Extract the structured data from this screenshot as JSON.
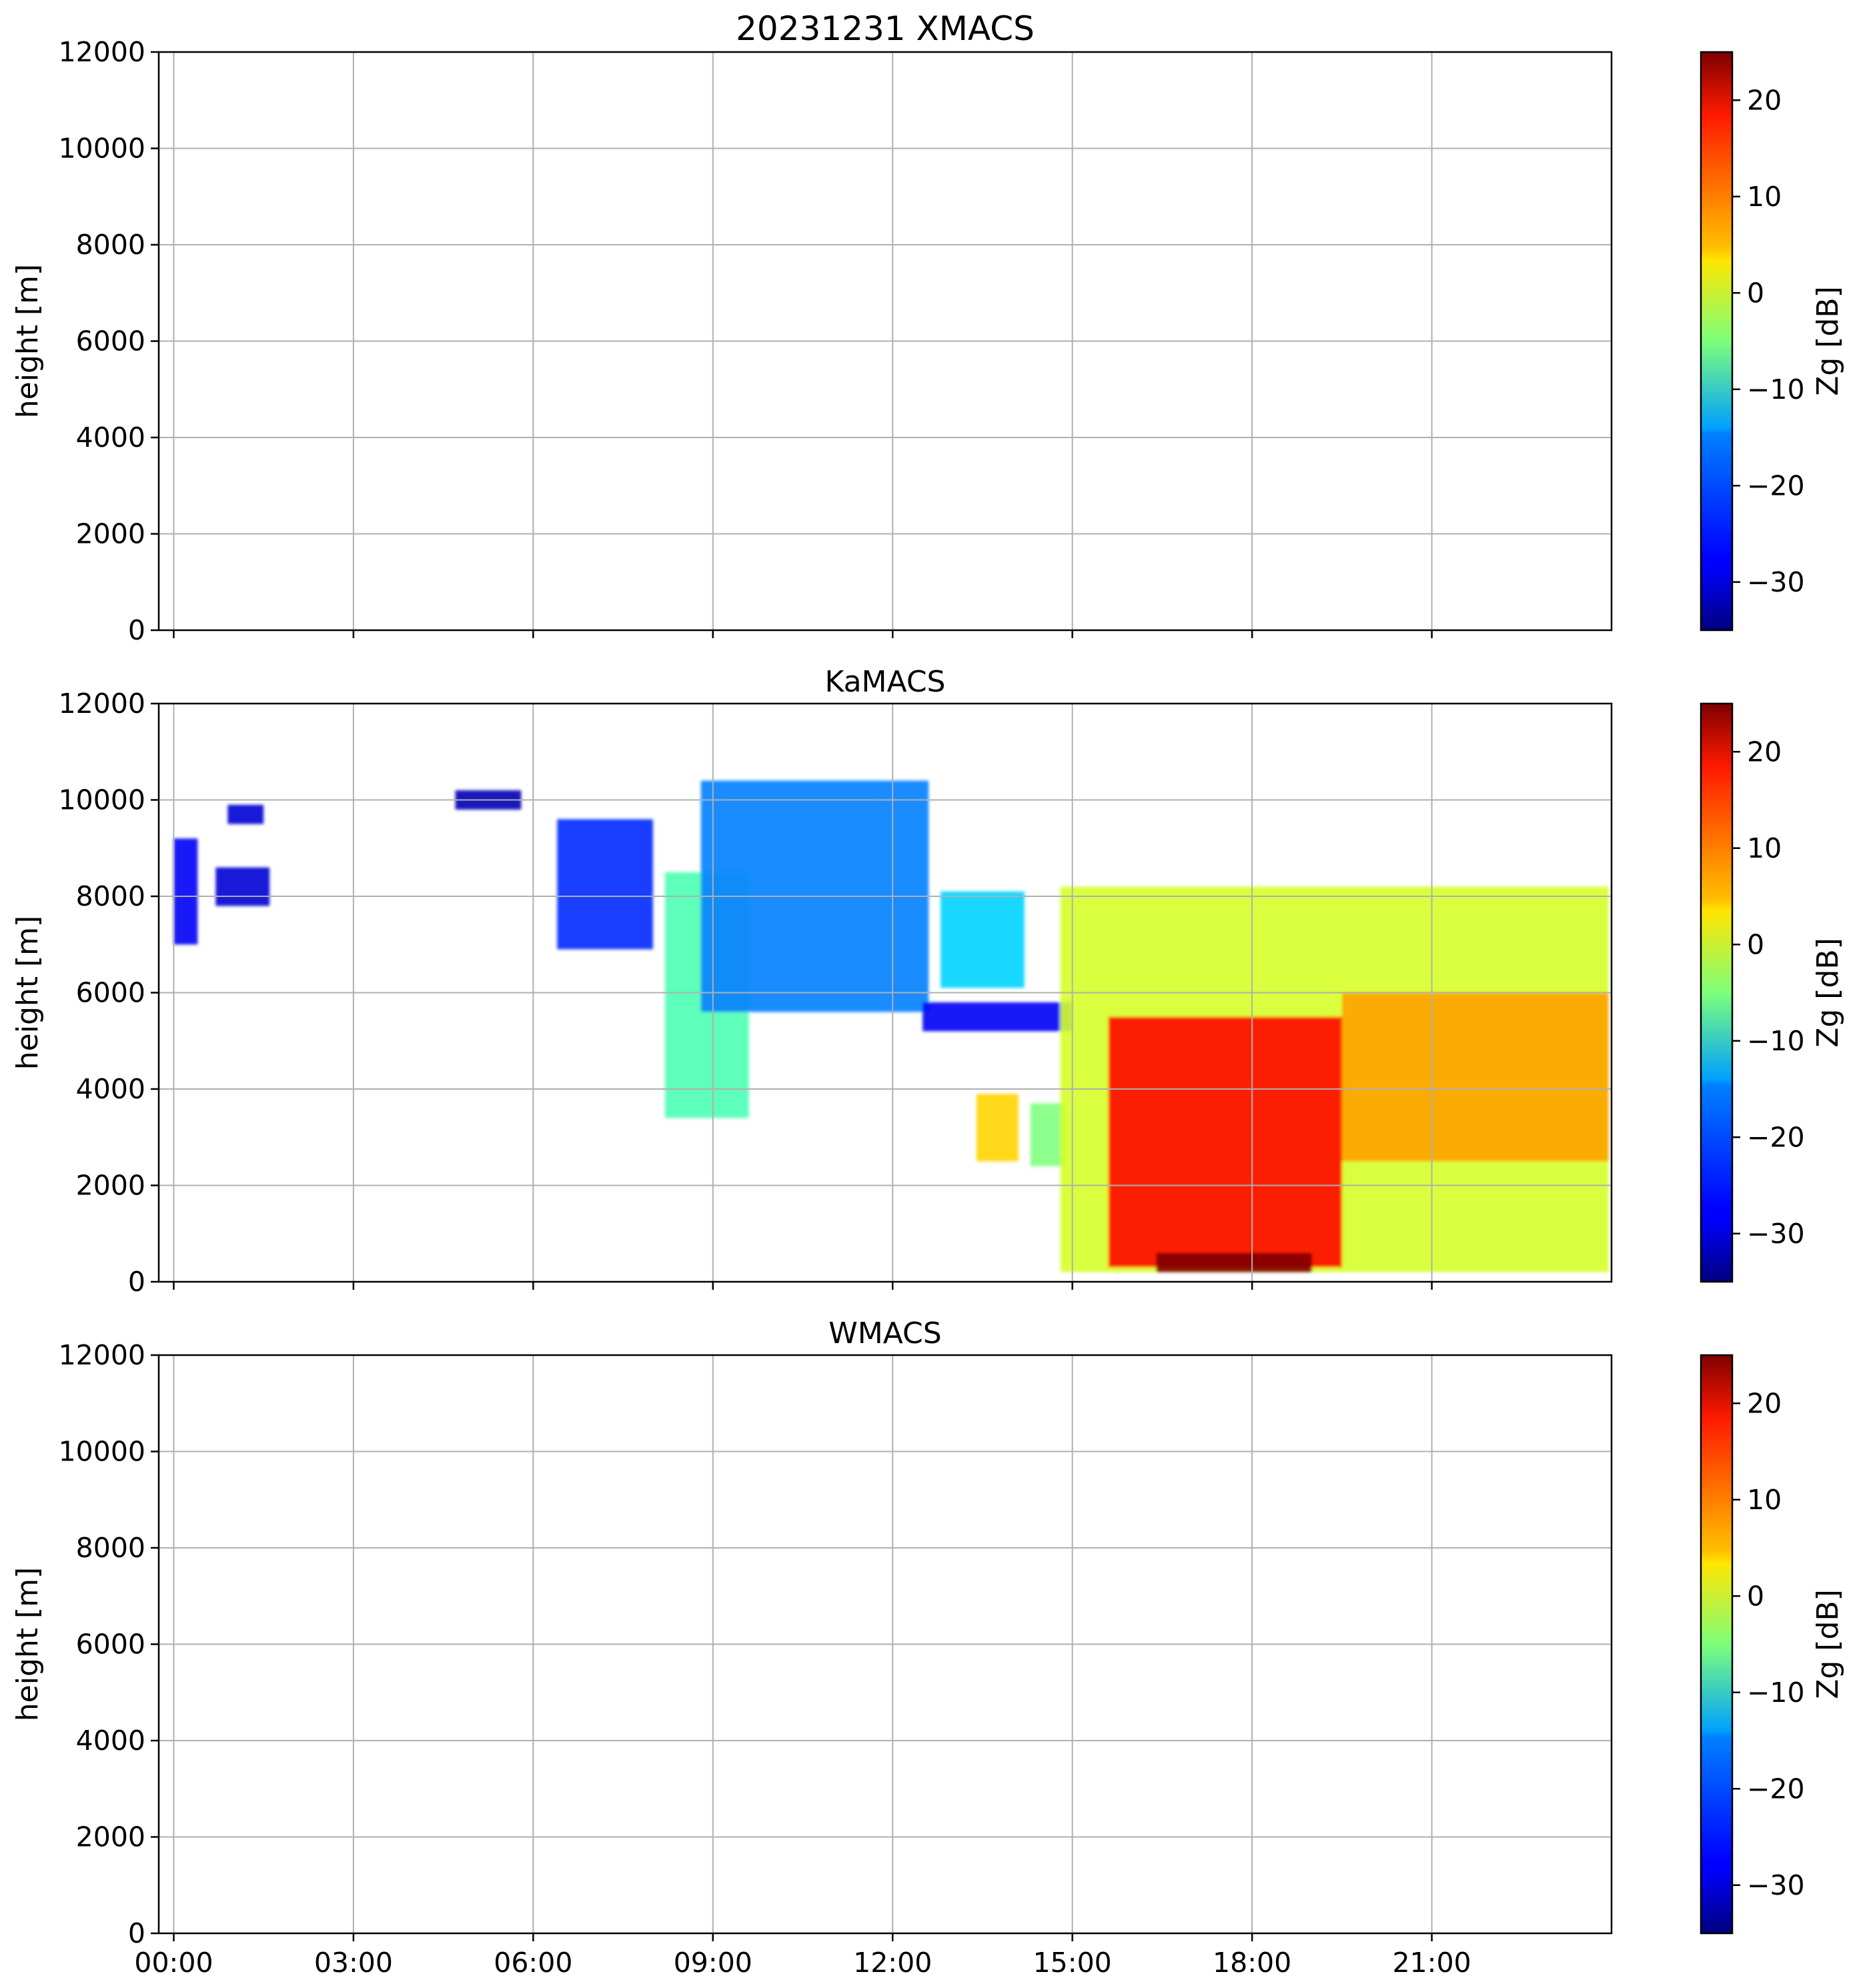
{
  "chart_data": [
    {
      "type": "heatmap",
      "title": "20231231 XMACS",
      "xlabel": "",
      "ylabel": "height [m]",
      "ylim": [
        0,
        12000
      ],
      "yticks": [
        "0",
        "2000",
        "4000",
        "6000",
        "8000",
        "10000",
        "12000"
      ],
      "xlim_hours": [
        -0.25,
        24
      ],
      "xticks": [],
      "grid": true,
      "data_present": false,
      "colorbar": {
        "label": "Zg [dB]",
        "range": [
          -35,
          25
        ],
        "colormap": "jet",
        "ticks": [
          "−30",
          "−20",
          "−10",
          "0",
          "10",
          "20"
        ]
      }
    },
    {
      "type": "heatmap",
      "title": "KaMACS",
      "xlabel": "",
      "ylabel": "height [m]",
      "ylim": [
        0,
        12000
      ],
      "yticks": [
        "0",
        "2000",
        "4000",
        "6000",
        "8000",
        "10000",
        "12000"
      ],
      "xlim_hours": [
        -0.25,
        24
      ],
      "xticks": [],
      "grid": true,
      "data_present": true,
      "colorbar": {
        "label": "Zg [dB]",
        "range": [
          -35,
          25
        ],
        "colormap": "jet",
        "ticks": [
          "−30",
          "−20",
          "−10",
          "0",
          "10",
          "20"
        ]
      },
      "cloud_regions": [
        {
          "t_start": 0.0,
          "t_end": 0.4,
          "h_low": 7000,
          "h_high": 9200,
          "zg_dB": -28
        },
        {
          "t_start": 0.7,
          "t_end": 1.6,
          "h_low": 7800,
          "h_high": 8600,
          "zg_dB": -30
        },
        {
          "t_start": 0.9,
          "t_end": 1.5,
          "h_low": 9500,
          "h_high": 9900,
          "zg_dB": -30
        },
        {
          "t_start": 4.7,
          "t_end": 5.8,
          "h_low": 9800,
          "h_high": 10200,
          "zg_dB": -32
        },
        {
          "t_start": 6.4,
          "t_end": 8.0,
          "h_low": 6900,
          "h_high": 9600,
          "zg_dB": -25
        },
        {
          "t_start": 8.2,
          "t_end": 9.6,
          "h_low": 3400,
          "h_high": 8500,
          "zg_dB": -8
        },
        {
          "t_start": 8.8,
          "t_end": 12.6,
          "h_low": 5600,
          "h_high": 10400,
          "zg_dB": -20
        },
        {
          "t_start": 12.8,
          "t_end": 14.2,
          "h_low": 6100,
          "h_high": 8100,
          "zg_dB": -15
        },
        {
          "t_start": 12.5,
          "t_end": 15.0,
          "h_low": 5200,
          "h_high": 5800,
          "zg_dB": -28
        },
        {
          "t_start": 13.4,
          "t_end": 14.1,
          "h_low": 2500,
          "h_high": 3900,
          "zg_dB": 5
        },
        {
          "t_start": 14.3,
          "t_end": 14.9,
          "h_low": 2400,
          "h_high": 3700,
          "zg_dB": -5
        },
        {
          "t_start": 14.8,
          "t_end": 23.95,
          "h_low": 200,
          "h_high": 8200,
          "zg_dB": 0
        },
        {
          "t_start": 15.6,
          "t_end": 19.5,
          "h_low": 300,
          "h_high": 5500,
          "zg_dB": 17
        },
        {
          "t_start": 16.4,
          "t_end": 19.0,
          "h_low": 200,
          "h_high": 600,
          "zg_dB": 25
        },
        {
          "t_start": 19.5,
          "t_end": 23.95,
          "h_low": 2500,
          "h_high": 6000,
          "zg_dB": 8
        }
      ]
    },
    {
      "type": "heatmap",
      "title": "WMACS",
      "xlabel": "",
      "ylabel": "height [m]",
      "ylim": [
        0,
        12000
      ],
      "yticks": [
        "0",
        "2000",
        "4000",
        "6000",
        "8000",
        "10000",
        "12000"
      ],
      "xlim_hours": [
        -0.25,
        24
      ],
      "xticks": [
        "00:00",
        "03:00",
        "06:00",
        "09:00",
        "12:00",
        "15:00",
        "18:00",
        "21:00"
      ],
      "grid": true,
      "data_present": false,
      "colorbar": {
        "label": "Zg [dB]",
        "range": [
          -35,
          25
        ],
        "colormap": "jet",
        "ticks": [
          "−30",
          "−20",
          "−10",
          "0",
          "10",
          "20"
        ]
      }
    }
  ]
}
